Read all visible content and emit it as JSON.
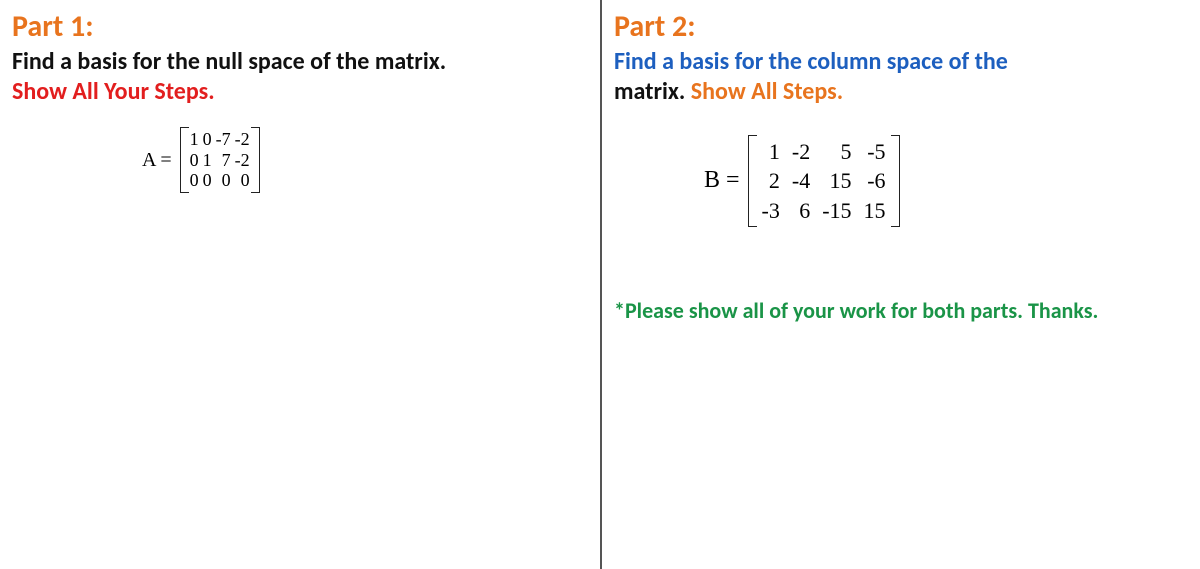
{
  "colors": {
    "orange": "#e8741e",
    "red": "#e21e1e",
    "black": "#111111",
    "blue": "#1d5fbf",
    "green": "#1a9447"
  },
  "left": {
    "title": "Part 1:",
    "prompt_black": "Find a basis for the null space of the matrix.",
    "prompt_red": "Show All Your Steps.",
    "matrix_label": "A =",
    "matrix": {
      "rows": [
        [
          "1",
          "0",
          "-7",
          "-2"
        ],
        [
          "0",
          "1",
          "7",
          "-2"
        ],
        [
          "0",
          "0",
          "0",
          "0"
        ]
      ]
    }
  },
  "right": {
    "title": "Part 2:",
    "prompt_blue": "Find a basis for the column space of the",
    "prompt_black": "matrix.",
    "prompt_orange": "Show All Steps.",
    "matrix_label": "B =",
    "matrix": {
      "rows": [
        [
          "1",
          "-2",
          "5",
          "-5"
        ],
        [
          "2",
          "-4",
          "15",
          "-6"
        ],
        [
          "-3",
          "6",
          "-15",
          "15"
        ]
      ]
    },
    "note": "*Please show all of your work for both parts. Thanks."
  }
}
